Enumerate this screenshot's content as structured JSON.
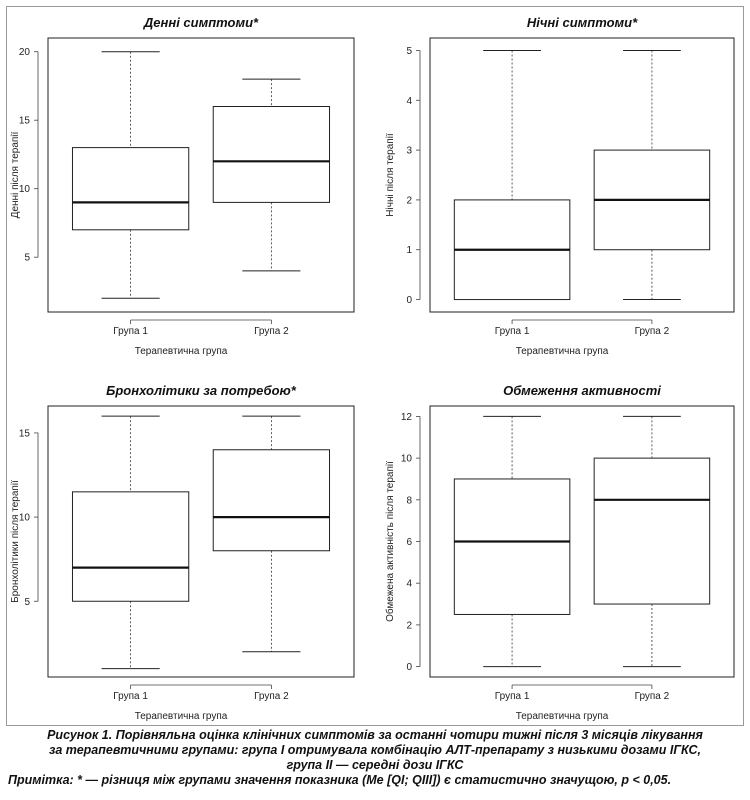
{
  "chart_data": [
    {
      "type": "box",
      "title": "Денні симптоми*",
      "ylabel": "Денні після терапії",
      "xlabel": "Терапевтична група",
      "categories": [
        "Група 1",
        "Група 2"
      ],
      "ylim": [
        1,
        21
      ],
      "yticks": [
        5,
        10,
        15,
        20
      ],
      "boxes": [
        {
          "min": 2,
          "q1": 7,
          "median": 9,
          "q3": 13,
          "max": 20
        },
        {
          "min": 4,
          "q1": 9,
          "median": 12,
          "q3": 16,
          "max": 18
        }
      ]
    },
    {
      "type": "box",
      "title": "Нічні симптоми*",
      "ylabel": "Нічні після терапії",
      "xlabel": "Терапевтична група",
      "categories": [
        "Група 1",
        "Група 2"
      ],
      "ylim": [
        -0.25,
        5.25
      ],
      "yticks": [
        0,
        1,
        2,
        3,
        4,
        5
      ],
      "boxes": [
        {
          "min": 0,
          "q1": 0,
          "median": 1,
          "q3": 2,
          "max": 5
        },
        {
          "min": 0,
          "q1": 1,
          "median": 2,
          "q3": 3,
          "max": 5
        }
      ]
    },
    {
      "type": "box",
      "title": "Бронхолітики за потребою*",
      "ylabel": "Бронхолітики після терапії",
      "xlabel": "Терапевтична група",
      "categories": [
        "Група 1",
        "Група 2"
      ],
      "ylim": [
        0.5,
        16.6
      ],
      "yticks": [
        5,
        10,
        15
      ],
      "boxes": [
        {
          "min": 1,
          "q1": 5,
          "median": 7,
          "q3": 11.5,
          "max": 16
        },
        {
          "min": 2,
          "q1": 8,
          "median": 10,
          "q3": 14,
          "max": 16
        }
      ]
    },
    {
      "type": "box",
      "title": "Обмеження активності",
      "ylabel": "Обмежена активність після терапії",
      "xlabel": "Терапевтична група",
      "categories": [
        "Група 1",
        "Група 2"
      ],
      "ylim": [
        -0.5,
        12.5
      ],
      "yticks": [
        0,
        2,
        4,
        6,
        8,
        10,
        12
      ],
      "boxes": [
        {
          "min": 0,
          "q1": 2.5,
          "median": 6,
          "q3": 9,
          "max": 12
        },
        {
          "min": 0,
          "q1": 3,
          "median": 8,
          "q3": 10,
          "max": 12
        }
      ]
    }
  ],
  "caption": {
    "line1": "Рисунок 1. Порівняльна оцінка клінічних симптомів за останні чотири тижні після 3 місяців лікування",
    "line2": "за терапевтичними групами: група І отримувала комбінацію АЛТ-препарату з низькими дозами ІГКС,",
    "line3": "група ІІ — середні дози ІГКС",
    "note": "Примітка: * — різниця між групами значення показника (Me [QI; QIII]) є статистично значущою, p < 0,05."
  }
}
